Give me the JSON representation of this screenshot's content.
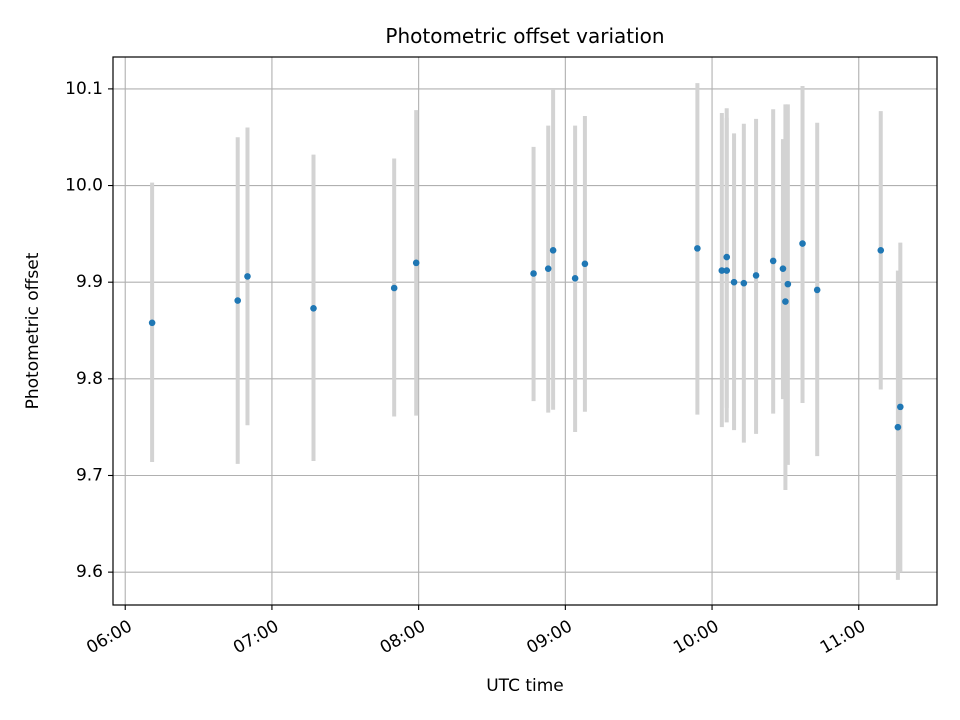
{
  "chart_data": {
    "type": "scatter",
    "title": "Photometric offset variation",
    "xlabel": "UTC time",
    "ylabel": "Photometric offset",
    "x_is_time": true,
    "xlim": [
      "05:55",
      "11:32"
    ],
    "ylim": [
      9.566,
      10.133
    ],
    "grid": true,
    "x_ticks": [
      "06:00",
      "07:00",
      "08:00",
      "09:00",
      "10:00",
      "11:00"
    ],
    "y_ticks": [
      "9.6",
      "9.7",
      "9.8",
      "9.9",
      "10.0",
      "10.1"
    ],
    "colors": {
      "point": "#1f77b4",
      "errorbar": "#d3d3d3",
      "grid": "#b0b0b0"
    },
    "points": [
      {
        "x": "06:11",
        "y": 9.858,
        "ylo": 9.714,
        "yhi": 10.003
      },
      {
        "x": "06:46",
        "y": 9.881,
        "ylo": 9.712,
        "yhi": 10.05
      },
      {
        "x": "06:50",
        "y": 9.906,
        "ylo": 9.752,
        "yhi": 10.06
      },
      {
        "x": "07:17",
        "y": 9.873,
        "ylo": 9.715,
        "yhi": 10.032
      },
      {
        "x": "07:50",
        "y": 9.894,
        "ylo": 9.761,
        "yhi": 10.028
      },
      {
        "x": "07:59",
        "y": 9.92,
        "ylo": 9.762,
        "yhi": 10.078
      },
      {
        "x": "08:47",
        "y": 9.909,
        "ylo": 9.777,
        "yhi": 10.04
      },
      {
        "x": "08:53",
        "y": 9.914,
        "ylo": 9.765,
        "yhi": 10.062
      },
      {
        "x": "08:55",
        "y": 9.933,
        "ylo": 9.768,
        "yhi": 10.099
      },
      {
        "x": "09:04",
        "y": 9.904,
        "ylo": 9.745,
        "yhi": 10.062
      },
      {
        "x": "09:08",
        "y": 9.919,
        "ylo": 9.766,
        "yhi": 10.072
      },
      {
        "x": "09:54",
        "y": 9.935,
        "ylo": 9.763,
        "yhi": 10.106
      },
      {
        "x": "10:04",
        "y": 9.912,
        "ylo": 9.75,
        "yhi": 10.075
      },
      {
        "x": "10:06",
        "y": 9.926,
        "ylo": 9.77,
        "yhi": 10.08
      },
      {
        "x": "10:06",
        "y": 9.912,
        "ylo": 9.755,
        "yhi": 10.07
      },
      {
        "x": "10:09",
        "y": 9.9,
        "ylo": 9.747,
        "yhi": 10.054
      },
      {
        "x": "10:13",
        "y": 9.899,
        "ylo": 9.734,
        "yhi": 10.064
      },
      {
        "x": "10:18",
        "y": 9.907,
        "ylo": 9.743,
        "yhi": 10.069
      },
      {
        "x": "10:25",
        "y": 9.922,
        "ylo": 9.764,
        "yhi": 10.079
      },
      {
        "x": "10:29",
        "y": 9.914,
        "ylo": 9.779,
        "yhi": 10.048
      },
      {
        "x": "10:30",
        "y": 9.88,
        "ylo": 9.685,
        "yhi": 10.084
      },
      {
        "x": "10:31",
        "y": 9.898,
        "ylo": 9.711,
        "yhi": 10.084
      },
      {
        "x": "10:37",
        "y": 9.94,
        "ylo": 9.775,
        "yhi": 10.103
      },
      {
        "x": "10:43",
        "y": 9.892,
        "ylo": 9.72,
        "yhi": 10.065
      },
      {
        "x": "11:09",
        "y": 9.933,
        "ylo": 9.789,
        "yhi": 10.077
      },
      {
        "x": "11:16",
        "y": 9.75,
        "ylo": 9.592,
        "yhi": 9.912
      },
      {
        "x": "11:17",
        "y": 9.771,
        "ylo": 9.6,
        "yhi": 9.941
      }
    ]
  }
}
